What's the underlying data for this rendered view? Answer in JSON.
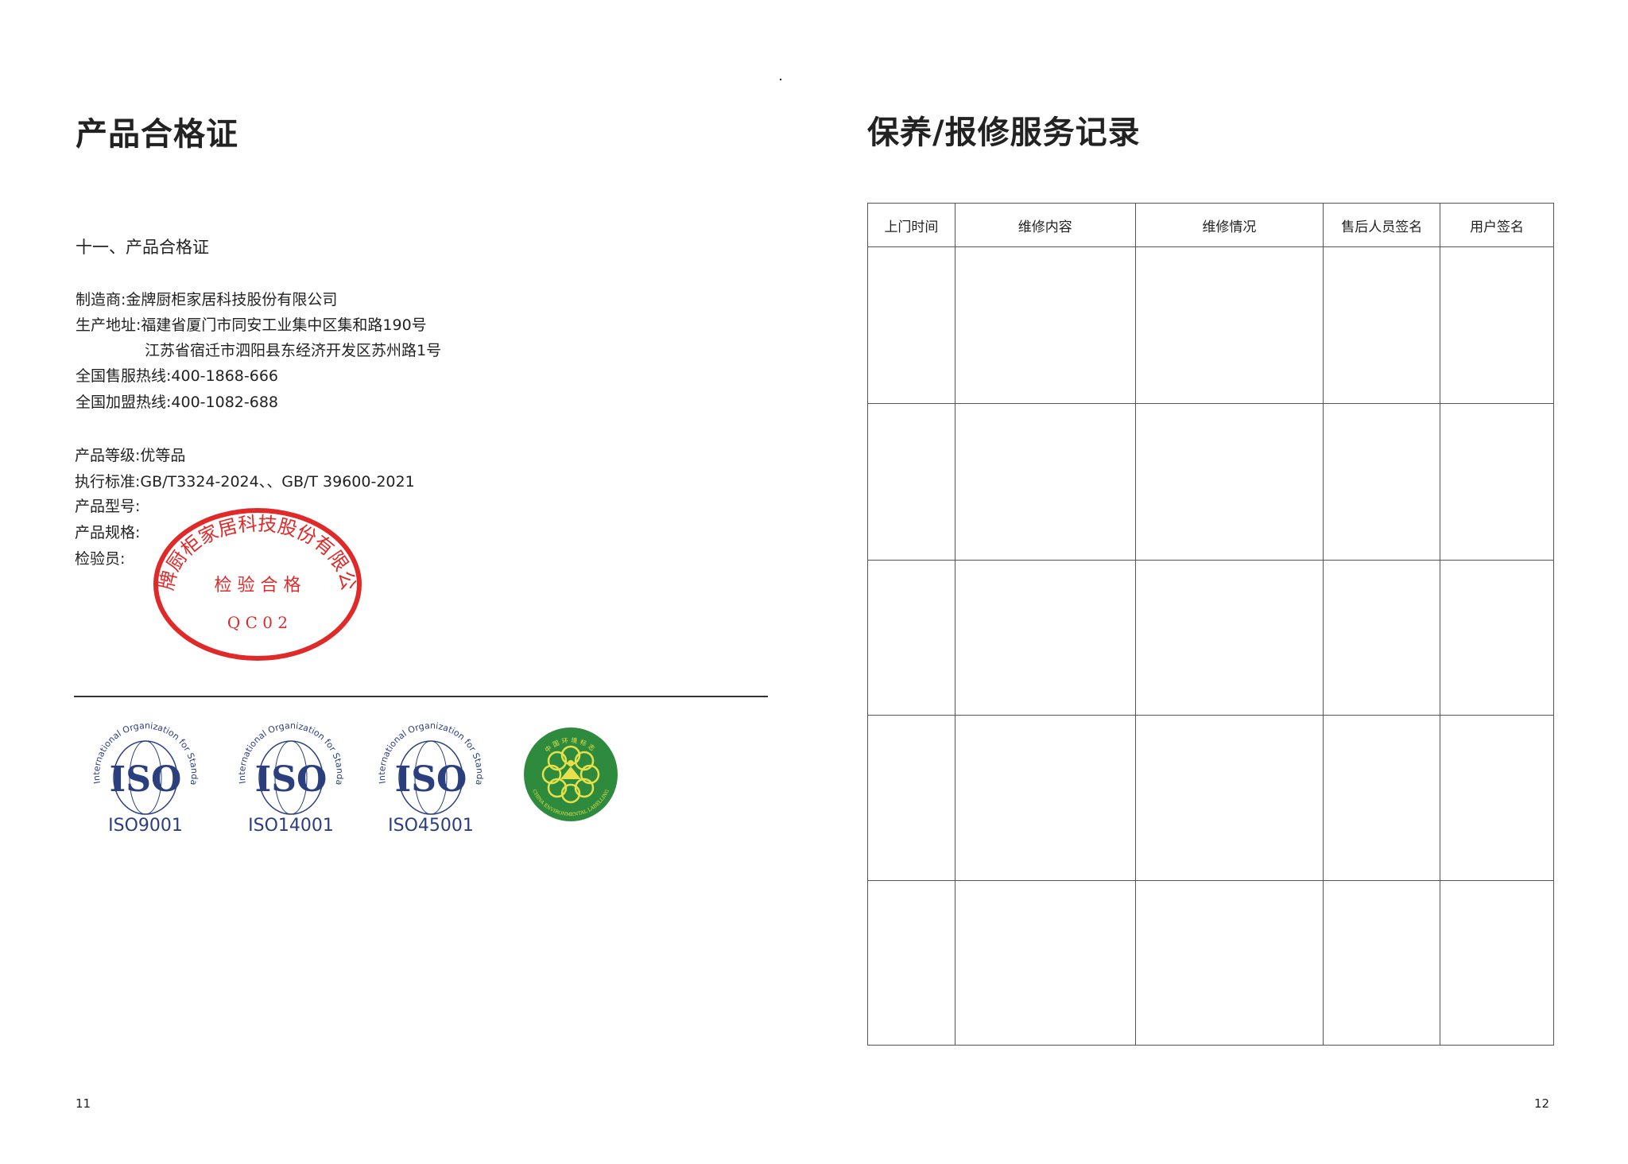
{
  "left_page": {
    "title": "产品合格证",
    "section_heading": "十一、产品合格证",
    "lines": [
      "制造商:金牌厨柜家居科技股份有限公司",
      "生产地址:福建省厦门市同安工业集中区集和路190号",
      "江苏省宿迁市泗阳县东经济开发区苏州路1号",
      "全国售服热线:400-1868-666",
      "全国加盟热线:400-1082-688"
    ],
    "product_lines": [
      "产品等级:优等品",
      "执行标准:GB/T3324-2024、、GB/T 39600-2021",
      "产品型号:",
      "产品规格:",
      "检验员:"
    ],
    "stamp": {
      "company": "金牌厨柜家居科技股份有限公司",
      "center_text": "检 验 合 格",
      "code": "Q C 0 2",
      "color": "#e02a2a"
    },
    "certifications": [
      {
        "arc_text": "International Organization for Standardization",
        "logo": "ISO",
        "label": "ISO9001"
      },
      {
        "arc_text": "International Organization for Standardization",
        "logo": "ISO",
        "label": "ISO14001"
      },
      {
        "arc_text": "International Organization for Standardization",
        "logo": "ISO",
        "label": "ISO45001"
      }
    ],
    "env_label": {
      "cn": "中国环境标志",
      "en": "CHINA ENVIRONMENTAL LABELLING",
      "color": "#2e8b3e"
    },
    "page_number": "11"
  },
  "right_page": {
    "title": "保养/报修服务记录",
    "table": {
      "headers": [
        "上门时间",
        "维修内容",
        "维修情况",
        "售后人员签名",
        "用户签名"
      ],
      "rows": [
        [
          "",
          "",
          "",
          "",
          ""
        ],
        [
          "",
          "",
          "",
          "",
          ""
        ],
        [
          "",
          "",
          "",
          "",
          ""
        ],
        [
          "",
          "",
          "",
          "",
          ""
        ],
        [
          "",
          "",
          "",
          "",
          ""
        ]
      ]
    },
    "page_number": "12"
  },
  "colors": {
    "iso_blue": "#2b3f7e",
    "text": "#222222"
  }
}
